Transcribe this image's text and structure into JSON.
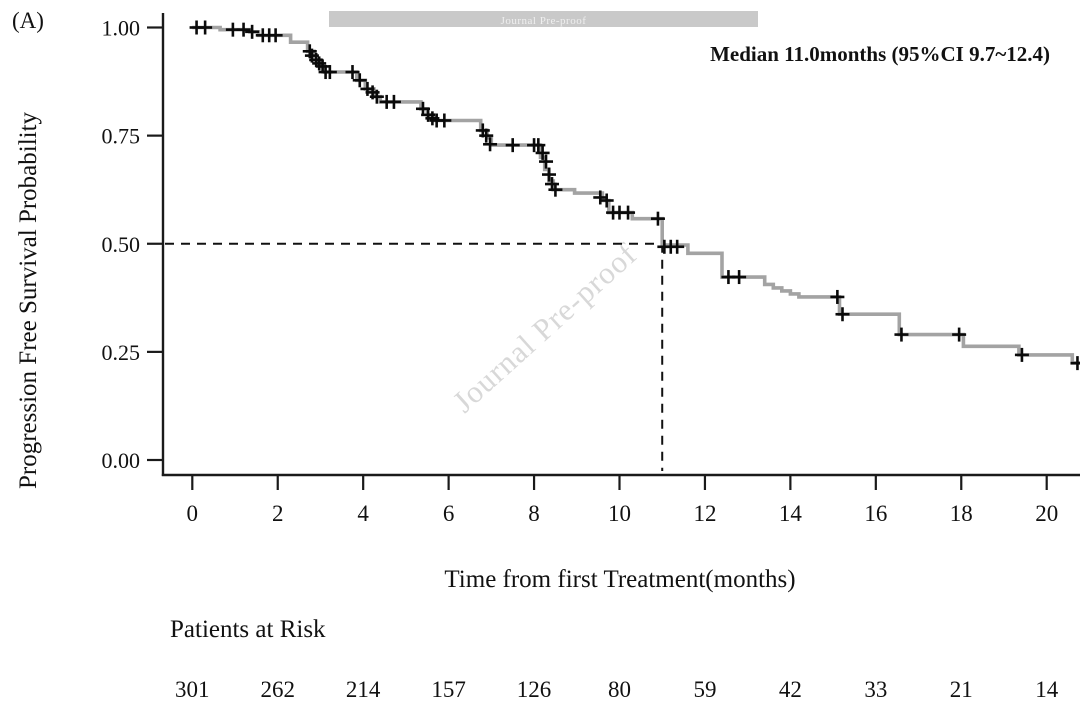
{
  "panel_label": "(A)",
  "watermark": {
    "banner_text": "Journal Pre-proof",
    "diagonal_text": "Journal Pre-proof"
  },
  "annotation": {
    "median_label": "Median 11.0months (95%CI 9.7~12.4)"
  },
  "chart_data": {
    "type": "line",
    "variant": "kaplan-meier-step",
    "title": "",
    "xlabel": "Time from first Treatment(months)",
    "ylabel": "Progression Free Survival Probability",
    "xlim": [
      0,
      20.85
    ],
    "ylim": [
      0,
      1.0
    ],
    "grid": "off",
    "legend": "none",
    "x_ticks": [
      0,
      2,
      4,
      6,
      8,
      10,
      12,
      14,
      16,
      18,
      20
    ],
    "y_ticks": [
      "0.00",
      "0.25",
      "0.50",
      "0.75",
      "1.00"
    ],
    "curve_color": "#a3a3a3",
    "censor_color": "#0a0a0a",
    "median": {
      "time": 11.0,
      "survival": 0.5,
      "ci_low": 9.7,
      "ci_high": 12.4
    },
    "steps": [
      [
        0.0,
        1.0
      ],
      [
        0.65,
        0.995
      ],
      [
        1.35,
        0.99
      ],
      [
        1.55,
        0.982
      ],
      [
        2.3,
        0.966
      ],
      [
        2.7,
        0.945
      ],
      [
        2.85,
        0.925
      ],
      [
        3.0,
        0.91
      ],
      [
        3.1,
        0.897
      ],
      [
        3.85,
        0.878
      ],
      [
        4.05,
        0.858
      ],
      [
        4.25,
        0.84
      ],
      [
        4.4,
        0.828
      ],
      [
        5.35,
        0.812
      ],
      [
        5.5,
        0.798
      ],
      [
        5.65,
        0.785
      ],
      [
        6.75,
        0.762
      ],
      [
        6.9,
        0.745
      ],
      [
        7.0,
        0.728
      ],
      [
        8.15,
        0.7
      ],
      [
        8.25,
        0.672
      ],
      [
        8.35,
        0.645
      ],
      [
        8.45,
        0.625
      ],
      [
        8.95,
        0.617
      ],
      [
        9.6,
        0.6
      ],
      [
        9.75,
        0.572
      ],
      [
        10.3,
        0.558
      ],
      [
        11.0,
        0.497
      ],
      [
        11.6,
        0.478
      ],
      [
        12.4,
        0.423
      ],
      [
        13.4,
        0.406
      ],
      [
        13.6,
        0.398
      ],
      [
        13.8,
        0.391
      ],
      [
        14.0,
        0.384
      ],
      [
        14.2,
        0.377
      ],
      [
        15.15,
        0.337
      ],
      [
        16.55,
        0.29
      ],
      [
        18.05,
        0.263
      ],
      [
        19.35,
        0.243
      ],
      [
        20.6,
        0.224
      ]
    ],
    "end_time": 20.8,
    "censor_marks": [
      [
        0.1,
        1.0
      ],
      [
        0.3,
        1.0
      ],
      [
        0.95,
        0.995
      ],
      [
        1.2,
        0.995
      ],
      [
        1.4,
        0.99
      ],
      [
        1.65,
        0.982
      ],
      [
        1.8,
        0.982
      ],
      [
        1.95,
        0.982
      ],
      [
        2.75,
        0.945
      ],
      [
        2.8,
        0.935
      ],
      [
        2.9,
        0.925
      ],
      [
        2.97,
        0.917
      ],
      [
        3.05,
        0.91
      ],
      [
        3.12,
        0.897
      ],
      [
        3.22,
        0.897
      ],
      [
        3.75,
        0.897
      ],
      [
        3.92,
        0.878
      ],
      [
        4.1,
        0.858
      ],
      [
        4.22,
        0.85
      ],
      [
        4.32,
        0.84
      ],
      [
        4.55,
        0.828
      ],
      [
        4.72,
        0.828
      ],
      [
        5.4,
        0.812
      ],
      [
        5.52,
        0.798
      ],
      [
        5.62,
        0.79
      ],
      [
        5.72,
        0.785
      ],
      [
        5.9,
        0.785
      ],
      [
        6.8,
        0.762
      ],
      [
        6.88,
        0.75
      ],
      [
        6.97,
        0.73
      ],
      [
        7.5,
        0.728
      ],
      [
        8.0,
        0.728
      ],
      [
        8.1,
        0.728
      ],
      [
        8.2,
        0.71
      ],
      [
        8.28,
        0.69
      ],
      [
        8.35,
        0.66
      ],
      [
        8.42,
        0.638
      ],
      [
        8.5,
        0.625
      ],
      [
        9.55,
        0.607
      ],
      [
        9.7,
        0.6
      ],
      [
        9.85,
        0.572
      ],
      [
        10.0,
        0.572
      ],
      [
        10.2,
        0.572
      ],
      [
        10.9,
        0.558
      ],
      [
        11.05,
        0.493
      ],
      [
        11.2,
        0.493
      ],
      [
        11.35,
        0.493
      ],
      [
        12.55,
        0.423
      ],
      [
        12.8,
        0.423
      ],
      [
        15.1,
        0.377
      ],
      [
        15.22,
        0.337
      ],
      [
        16.6,
        0.29
      ],
      [
        17.95,
        0.29
      ],
      [
        19.42,
        0.243
      ],
      [
        20.72,
        0.224
      ]
    ],
    "at_risk": {
      "label": "Patients at Risk",
      "times": [
        0,
        2,
        4,
        6,
        8,
        10,
        12,
        14,
        16,
        18,
        20
      ],
      "counts": [
        301,
        262,
        214,
        157,
        126,
        80,
        59,
        42,
        33,
        21,
        14
      ]
    }
  }
}
